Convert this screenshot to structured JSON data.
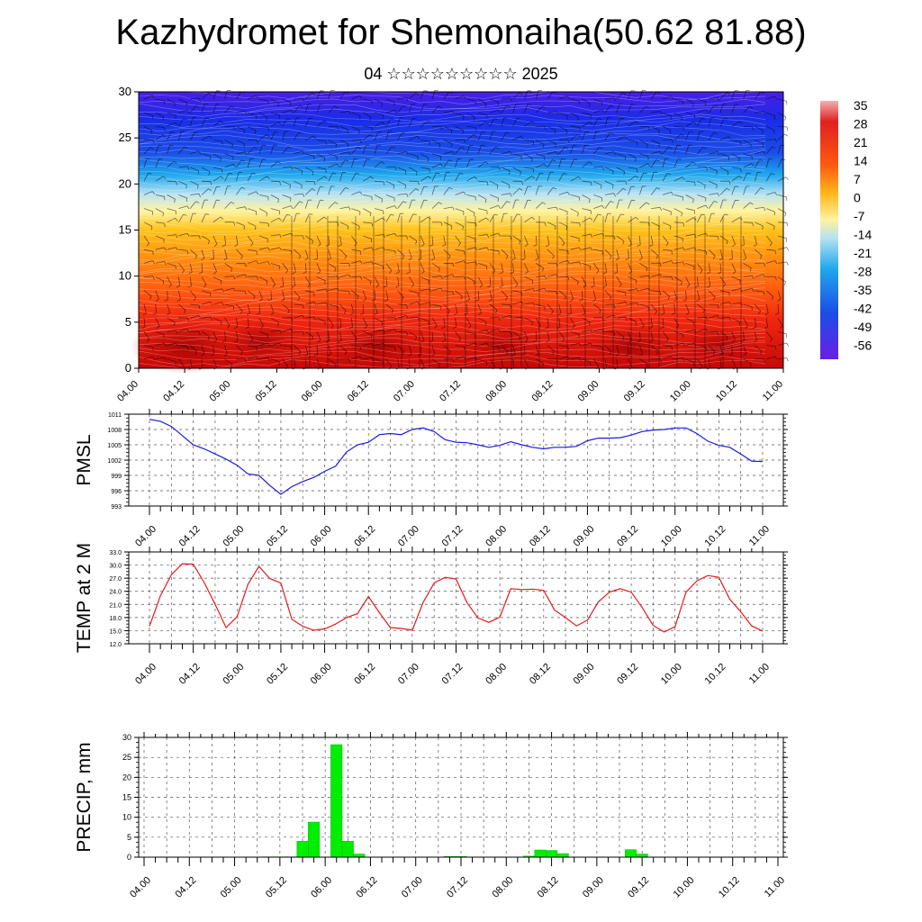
{
  "title": "Kazhydromet for Shemonaiha(50.62 81.88)",
  "subtitle": "04 ☆☆☆☆☆☆☆☆☆ 2025",
  "colors": {
    "pmsl_line": "#1a1ae6",
    "temp_line": "#e61a1a",
    "precip_bar": "#00ee00",
    "cold": "#4a1ee6",
    "warm": "#d01010"
  },
  "chart_data": [
    {
      "type": "heatmap",
      "description_label": "cross-section",
      "ylabel": "",
      "ylim": [
        0,
        30
      ],
      "yticks": [
        "0",
        "5",
        "10",
        "15",
        "20",
        "25",
        "30"
      ],
      "xticks": [
        "04.00",
        "04.12",
        "05.00",
        "05.12",
        "06.00",
        "06.12",
        "07.00",
        "07.12",
        "08.00",
        "08.12",
        "09.00",
        "09.12",
        "10.00",
        "10.12",
        "11.00"
      ],
      "colorbar": {
        "labels": [
          "35",
          "28",
          "21",
          "14",
          "7",
          "0",
          "-7",
          "-14",
          "-21",
          "-28",
          "-35",
          "-42",
          "-49",
          "-56"
        ]
      }
    },
    {
      "type": "line",
      "ylabel": "PMSL",
      "ylim": [
        993,
        1011
      ],
      "yticks": [
        "993",
        "996",
        "999",
        "1002",
        "1005",
        "1008",
        "1011"
      ],
      "xticks": [
        "04.00",
        "04.12",
        "05.00",
        "05.12",
        "06.00",
        "06.12",
        "07.00",
        "07.12",
        "08.00",
        "08.12",
        "09.00",
        "09.12",
        "10.00",
        "10.12",
        "11.00"
      ],
      "values": [
        1010.0,
        1009.6,
        1008.6,
        1006.8,
        1005.0,
        1004.2,
        1003.2,
        1002.2,
        1001.0,
        999.3,
        999.0,
        997.0,
        995.3,
        996.8,
        997.8,
        998.6,
        999.8,
        1000.8,
        1003.6,
        1005.0,
        1005.5,
        1007.0,
        1007.2,
        1007.0,
        1008.0,
        1008.3,
        1007.6,
        1006.0,
        1005.5,
        1005.4,
        1005.0,
        1004.5,
        1004.9,
        1005.6,
        1005.0,
        1004.5,
        1004.2,
        1004.5,
        1004.5,
        1004.7,
        1005.8,
        1006.3,
        1006.3,
        1006.4,
        1006.9,
        1007.6,
        1007.9,
        1008.0,
        1008.3,
        1008.3,
        1007.2,
        1005.7,
        1004.9,
        1004.5,
        1003.2,
        1001.8,
        1001.7
      ]
    },
    {
      "type": "line",
      "ylabel": "TEMP at 2 M",
      "ylim": [
        12,
        33
      ],
      "yticks": [
        "12.0",
        "15.0",
        "18.0",
        "21.0",
        "24.0",
        "27.0",
        "30.0",
        "33.0"
      ],
      "xticks": [
        "04.00",
        "04.12",
        "05.00",
        "05.12",
        "06.00",
        "06.12",
        "07.00",
        "07.12",
        "08.00",
        "08.12",
        "09.00",
        "09.12",
        "10.00",
        "10.12",
        "11.00"
      ],
      "values": [
        16.0,
        23.0,
        27.8,
        30.3,
        30.2,
        26.0,
        21.0,
        15.7,
        18.2,
        25.6,
        29.7,
        26.9,
        25.9,
        17.6,
        16.0,
        15.1,
        15.4,
        16.5,
        18.0,
        18.9,
        22.8,
        19.1,
        15.7,
        15.5,
        15.1,
        21.5,
        25.9,
        27.2,
        26.8,
        21.4,
        17.9,
        16.9,
        18.1,
        24.6,
        24.4,
        24.5,
        24.2,
        19.7,
        18.0,
        16.1,
        17.4,
        21.6,
        23.8,
        24.6,
        23.8,
        20.3,
        16.2,
        14.7,
        15.9,
        23.8,
        26.4,
        27.6,
        27.2,
        22.2,
        19.3,
        16.1,
        14.9
      ]
    },
    {
      "type": "bar",
      "ylabel": "PRECIP, mm",
      "ylim": [
        0,
        30
      ],
      "yticks": [
        "0",
        "5",
        "10",
        "15",
        "20",
        "25",
        "30"
      ],
      "xticks": [
        "04.00",
        "04.12",
        "05.00",
        "05.12",
        "06.00",
        "06.12",
        "07.00",
        "07.12",
        "08.00",
        "08.12",
        "09.00",
        "09.12",
        "10.00",
        "10.12",
        "11.00"
      ],
      "values": [
        0,
        0,
        0,
        0,
        0,
        0,
        0,
        0,
        0,
        0,
        0,
        0.1,
        0.1,
        0.1,
        4.0,
        8.8,
        0,
        28.2,
        4.0,
        0.8,
        0,
        0,
        0,
        0,
        0,
        0,
        0,
        0.2,
        0.2,
        0,
        0,
        0,
        0,
        0,
        0.3,
        1.8,
        1.7,
        0.9,
        0,
        0,
        0,
        0,
        0,
        1.9,
        0.8,
        0,
        0,
        0,
        0,
        0,
        0,
        0,
        0,
        0,
        0,
        0,
        0
      ]
    }
  ]
}
